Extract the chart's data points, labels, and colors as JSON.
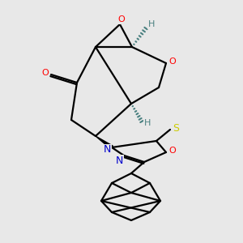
{
  "bg_color": "#e8e8e8",
  "bond_color": "#000000",
  "atom_colors": {
    "O": "#ff0000",
    "N": "#0000cc",
    "S": "#cccc00",
    "H": "#4a8080",
    "C": "#000000"
  },
  "figsize": [
    3.0,
    3.0
  ],
  "dpi": 100
}
